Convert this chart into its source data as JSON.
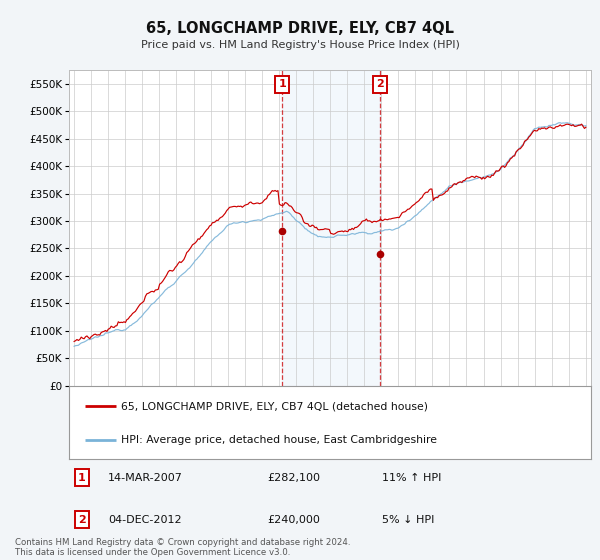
{
  "title": "65, LONGCHAMP DRIVE, ELY, CB7 4QL",
  "subtitle": "Price paid vs. HM Land Registry's House Price Index (HPI)",
  "hpi_color": "#7ab3d8",
  "price_color": "#cc0000",
  "background_color": "#f2f5f8",
  "plot_bg": "#ffffff",
  "ylim": [
    0,
    575000
  ],
  "yticks": [
    0,
    50000,
    100000,
    150000,
    200000,
    250000,
    300000,
    350000,
    400000,
    450000,
    500000,
    550000
  ],
  "xlim_left": 1995.0,
  "xlim_right": 2025.3,
  "sale1_t": 2007.21,
  "sale1_price": 282100,
  "sale1_date": "14-MAR-2007",
  "sale1_hpi_pct": "11% ↑ HPI",
  "sale2_t": 2012.92,
  "sale2_price": 240000,
  "sale2_date": "04-DEC-2012",
  "sale2_hpi_pct": "5% ↓ HPI",
  "legend_label1": "65, LONGCHAMP DRIVE, ELY, CB7 4QL (detached house)",
  "legend_label2": "HPI: Average price, detached house, East Cambridgeshire",
  "footer": "Contains HM Land Registry data © Crown copyright and database right 2024.\nThis data is licensed under the Open Government Licence v3.0."
}
